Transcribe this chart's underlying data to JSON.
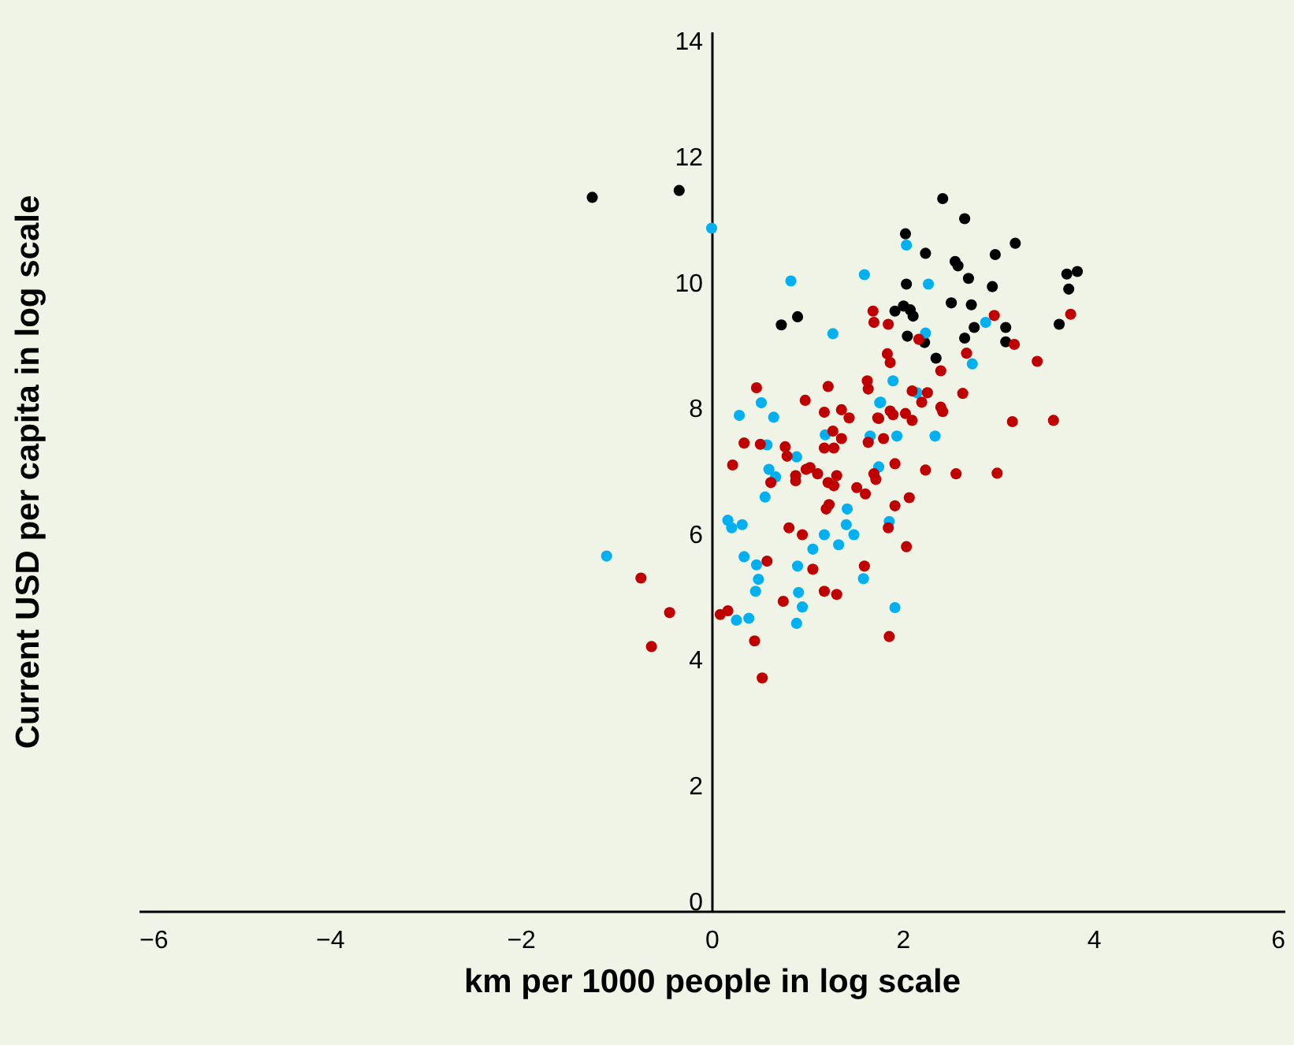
{
  "chart_data": {
    "type": "scatter",
    "xlabel": "km per 1000 people in log scale",
    "ylabel": "Current USD per capita in log scale",
    "xlim": [
      -6,
      6
    ],
    "ylim": [
      0,
      14
    ],
    "xticks": [
      -6,
      -4,
      -2,
      0,
      2,
      4,
      6
    ],
    "yticks": [
      0,
      2,
      4,
      6,
      8,
      10,
      12,
      14
    ],
    "grid": false,
    "legend": false,
    "marker": "circle",
    "series": [
      {
        "color": "#000000",
        "x": [
          -1.25,
          -0.34,
          0.73,
          0.9,
          2.42,
          2.65,
          2.03,
          3.18,
          2.24,
          2.97,
          2.55,
          2.58,
          2.69,
          2.04,
          2.94,
          3.72,
          3.83,
          3.74,
          2.51,
          2.72,
          1.92,
          2.01,
          2.08,
          2.11,
          2.05,
          2.23,
          2.75,
          3.08,
          2.65,
          3.08,
          3.64,
          2.35
        ],
        "values": [
          11.36,
          11.47,
          9.33,
          9.46,
          11.34,
          11.02,
          10.78,
          10.63,
          10.47,
          10.45,
          10.34,
          10.27,
          10.07,
          9.98,
          9.94,
          10.14,
          10.18,
          9.9,
          9.68,
          9.65,
          9.55,
          9.63,
          9.57,
          9.47,
          9.15,
          9.05,
          9.29,
          9.29,
          9.12,
          9.06,
          9.34,
          8.8
        ]
      },
      {
        "color": "#00b0f0",
        "x": [
          0.0,
          0.83,
          1.6,
          1.27,
          0.52,
          0.29,
          0.65,
          1.76,
          2.04,
          2.27,
          2.24,
          2.87,
          2.73,
          1.9,
          1.77,
          2.15,
          1.66,
          1.94,
          2.34,
          1.75,
          1.86,
          1.49,
          1.59,
          1.92,
          -1.1,
          0.58,
          1.19,
          0.89,
          0.6,
          0.67,
          0.56,
          0.17,
          0.32,
          0.21,
          1.42,
          1.41,
          1.18,
          1.06,
          1.33,
          0.34,
          0.47,
          0.49,
          0.46,
          0.9,
          0.91,
          0.95,
          0.89,
          0.26,
          0.39
        ],
        "values": [
          10.87,
          10.03,
          10.13,
          9.19,
          8.09,
          7.89,
          7.86,
          8.09,
          10.6,
          9.98,
          9.2,
          9.37,
          8.71,
          8.44,
          8.1,
          8.25,
          7.56,
          7.56,
          7.56,
          7.07,
          6.2,
          5.99,
          5.29,
          4.83,
          5.65,
          7.42,
          7.58,
          7.23,
          7.03,
          6.91,
          6.59,
          6.22,
          6.15,
          6.1,
          6.4,
          6.15,
          5.99,
          5.76,
          5.83,
          5.64,
          5.51,
          5.28,
          5.09,
          5.49,
          5.07,
          4.84,
          4.58,
          4.63,
          4.66
        ]
      },
      {
        "color": "#c00000",
        "x": [
          1.69,
          1.7,
          0.47,
          1.22,
          1.63,
          1.64,
          0.98,
          1.18,
          1.36,
          1.44,
          1.74,
          1.27,
          1.85,
          2.96,
          3.76,
          2.17,
          3.17,
          1.84,
          1.87,
          2.67,
          2.4,
          3.41,
          2.1,
          2.26,
          2.63,
          2.2,
          2.4,
          2.42,
          1.87,
          1.9,
          2.03,
          2.1,
          1.75,
          3.15,
          3.58,
          1.64,
          1.8,
          1.92,
          2.24,
          2.56,
          2.99,
          1.7,
          1.72,
          1.52,
          1.61,
          2.07,
          1.92,
          1.85,
          2.04,
          1.6,
          1.86,
          0.34,
          0.51,
          0.77,
          0.79,
          1.36,
          1.18,
          1.28,
          0.22,
          0.62,
          0.88,
          0.88,
          0.99,
          1.03,
          1.11,
          1.22,
          1.28,
          1.31,
          1.23,
          1.2,
          0.81,
          0.95,
          0.58,
          1.06,
          -0.74,
          -0.44,
          -0.63,
          0.09,
          0.17,
          0.75,
          1.18,
          1.31,
          0.45,
          0.53
        ],
        "values": [
          9.55,
          9.37,
          8.33,
          8.35,
          8.44,
          8.31,
          8.13,
          7.94,
          7.98,
          7.85,
          7.85,
          7.64,
          9.34,
          9.48,
          9.5,
          9.1,
          9.02,
          8.87,
          8.73,
          8.88,
          8.6,
          8.75,
          8.28,
          8.25,
          8.24,
          8.1,
          8.02,
          7.95,
          7.96,
          7.9,
          7.92,
          7.81,
          7.84,
          7.79,
          7.81,
          7.46,
          7.52,
          7.12,
          7.02,
          6.96,
          6.97,
          6.96,
          6.87,
          6.74,
          6.64,
          6.58,
          6.45,
          6.1,
          5.8,
          5.49,
          4.37,
          7.45,
          7.43,
          7.39,
          7.24,
          7.52,
          7.37,
          7.37,
          7.1,
          6.82,
          6.93,
          6.85,
          7.03,
          7.06,
          6.96,
          6.82,
          6.77,
          6.93,
          6.47,
          6.4,
          6.1,
          5.99,
          5.57,
          5.44,
          5.3,
          4.75,
          4.21,
          4.72,
          4.78,
          4.93,
          5.09,
          5.04,
          4.3,
          3.71
        ]
      }
    ]
  }
}
